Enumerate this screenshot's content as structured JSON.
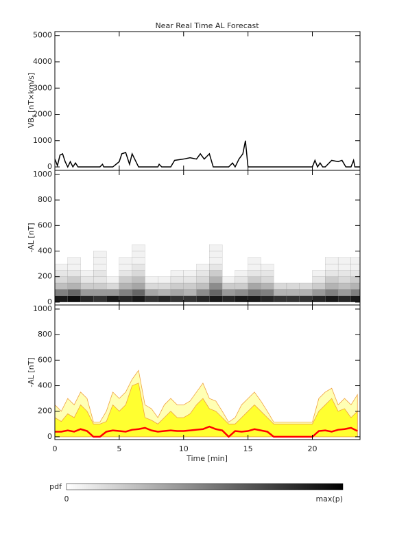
{
  "chart_data": [
    {
      "type": "line",
      "title": "Near Real Time AL Forecast",
      "ylabel_main": "VB",
      "ylabel_sub": "s",
      "ylabel_unit": "[nT×km/s]",
      "xlim": [
        0,
        23.7
      ],
      "ylim": [
        -130,
        5150
      ],
      "xticks": [
        0,
        5,
        10,
        15,
        20
      ],
      "yticks": [
        0,
        1000,
        2000,
        3000,
        4000,
        5000
      ],
      "show_xtick_labels": false,
      "series": [
        {
          "color": "#000000",
          "x": [
            0,
            0.2,
            0.4,
            0.6,
            0.8,
            1.0,
            1.2,
            1.4,
            1.6,
            1.8,
            2.0,
            2.5,
            3,
            3.5,
            3.7,
            3.8,
            4.5,
            5,
            5.2,
            5.5,
            5.8,
            6,
            6.2,
            6.5,
            8,
            8.1,
            8.3,
            9,
            9.3,
            10,
            10.5,
            11,
            11.3,
            11.6,
            11.8,
            12,
            12.3,
            12.5,
            13,
            13.5,
            13.8,
            14,
            14.3,
            14.6,
            14.8,
            15,
            15.3,
            15.6,
            16,
            17,
            20,
            20.2,
            20.4,
            20.6,
            20.8,
            21,
            21.5,
            22,
            22.3,
            22.6,
            23,
            23.2,
            23.3,
            23.7
          ],
          "values": [
            300,
            50,
            450,
            500,
            200,
            0,
            200,
            0,
            150,
            0,
            0,
            0,
            0,
            0,
            100,
            0,
            0,
            200,
            500,
            550,
            100,
            500,
            300,
            0,
            0,
            100,
            0,
            0,
            250,
            300,
            350,
            300,
            500,
            300,
            400,
            500,
            0,
            0,
            0,
            0,
            150,
            0,
            300,
            500,
            1000,
            0,
            0,
            0,
            0,
            0,
            0,
            250,
            0,
            150,
            0,
            0,
            250,
            200,
            250,
            0,
            0,
            250,
            0,
            0
          ]
        }
      ]
    },
    {
      "type": "heatmap",
      "ylabel": "-AL [nT]",
      "xlim": [
        0,
        23.7
      ],
      "ylim": [
        -22,
        1032
      ],
      "xticks": [
        0,
        5,
        10,
        15,
        20
      ],
      "yticks": [
        0,
        200,
        400,
        600,
        800,
        1000
      ],
      "show_xtick_labels": false,
      "xbins": [
        0,
        1,
        2,
        3,
        4,
        5,
        6,
        7,
        8,
        9,
        10,
        11,
        12,
        13,
        14,
        15,
        16,
        17,
        18,
        19,
        20,
        21,
        22,
        23,
        24
      ],
      "ybins": [
        0,
        50,
        100,
        150,
        200,
        250,
        300,
        350,
        400,
        450
      ],
      "z": [
        [
          0.9,
          0.95,
          0.85,
          0.8,
          0.9,
          0.85,
          0.9,
          0.8,
          0.85,
          0.8,
          0.8,
          0.85,
          0.9,
          0.85,
          0.9,
          0.9,
          0.85,
          0.8,
          0.8,
          0.8,
          0.85,
          0.9,
          0.85,
          0.9
        ],
        [
          0.5,
          0.6,
          0.4,
          0.4,
          0.4,
          0.5,
          0.6,
          0.35,
          0.3,
          0.35,
          0.3,
          0.45,
          0.6,
          0.4,
          0.45,
          0.55,
          0.5,
          0.3,
          0.3,
          0.3,
          0.4,
          0.5,
          0.4,
          0.5
        ],
        [
          0.25,
          0.3,
          0.2,
          0.2,
          0.15,
          0.3,
          0.35,
          0.15,
          0.15,
          0.2,
          0.2,
          0.25,
          0.45,
          0.2,
          0.2,
          0.35,
          0.3,
          0.15,
          0.15,
          0.15,
          0.2,
          0.3,
          0.25,
          0.3
        ],
        [
          0.15,
          0.2,
          0.1,
          0.1,
          0.05,
          0.2,
          0.25,
          0.05,
          0.05,
          0.1,
          0.1,
          0.15,
          0.3,
          0.05,
          0.1,
          0.2,
          0.15,
          0,
          0,
          0,
          0.1,
          0.2,
          0.15,
          0.2
        ],
        [
          0.1,
          0.1,
          0.05,
          0.1,
          0,
          0.1,
          0.15,
          0,
          0,
          0.05,
          0.05,
          0.1,
          0.2,
          0,
          0.05,
          0.1,
          0.1,
          0,
          0,
          0,
          0.05,
          0.1,
          0.1,
          0.1
        ],
        [
          0.05,
          0.05,
          0,
          0.05,
          0,
          0.05,
          0.1,
          0,
          0,
          0,
          0,
          0.05,
          0.1,
          0,
          0,
          0.05,
          0.05,
          0,
          0,
          0,
          0,
          0.05,
          0.05,
          0.05
        ],
        [
          0,
          0.05,
          0,
          0.05,
          0,
          0.05,
          0.05,
          0,
          0,
          0,
          0,
          0,
          0.05,
          0,
          0,
          0.05,
          0,
          0,
          0,
          0,
          0,
          0.05,
          0.05,
          0.05
        ],
        [
          0,
          0,
          0,
          0.05,
          0,
          0,
          0.05,
          0,
          0,
          0,
          0,
          0,
          0.05,
          0,
          0,
          0,
          0,
          0,
          0,
          0,
          0,
          0,
          0,
          0
        ],
        [
          0,
          0,
          0,
          0,
          0,
          0,
          0.05,
          0,
          0,
          0,
          0,
          0,
          0.05,
          0,
          0,
          0,
          0,
          0,
          0,
          0,
          0,
          0,
          0,
          0
        ]
      ]
    },
    {
      "type": "area",
      "ylabel": "-AL [nT]",
      "xlabel": "Time [min]",
      "xlim": [
        0,
        23.7
      ],
      "ylim": [
        -22,
        1032
      ],
      "xticks": [
        0,
        5,
        10,
        15,
        20
      ],
      "yticks": [
        0,
        200,
        400,
        600,
        800,
        1000
      ],
      "show_xtick_labels": true,
      "x": [
        0,
        0.5,
        1,
        1.5,
        2,
        2.5,
        3,
        3.5,
        4,
        4.5,
        5,
        5.5,
        6,
        6.5,
        7,
        7.5,
        8,
        8.5,
        9,
        9.5,
        10,
        10.5,
        11,
        11.5,
        12,
        12.5,
        13,
        13.5,
        14,
        14.5,
        15,
        15.5,
        16,
        16.5,
        17,
        17.5,
        18,
        18.5,
        19,
        19.5,
        20,
        20.5,
        21,
        21.5,
        22,
        22.5,
        23,
        23.5
      ],
      "series": [
        {
          "style": "fill",
          "color": "#ffffb4",
          "edge": "#f0a040",
          "values": [
            250,
            200,
            300,
            250,
            350,
            300,
            115,
            115,
            200,
            350,
            300,
            350,
            450,
            520,
            250,
            220,
            150,
            250,
            300,
            250,
            250,
            280,
            350,
            420,
            300,
            280,
            200,
            115,
            150,
            250,
            300,
            350,
            280,
            200,
            115,
            115,
            115,
            115,
            115,
            115,
            115,
            300,
            350,
            380,
            250,
            300,
            250,
            330
          ]
        },
        {
          "style": "fill",
          "color": "#ffff30",
          "edge": "#f0a040",
          "values": [
            150,
            120,
            180,
            150,
            250,
            200,
            100,
            100,
            120,
            250,
            200,
            250,
            400,
            420,
            150,
            130,
            100,
            150,
            200,
            150,
            150,
            180,
            250,
            300,
            220,
            200,
            150,
            100,
            100,
            150,
            200,
            250,
            200,
            150,
            100,
            100,
            100,
            100,
            100,
            100,
            100,
            200,
            250,
            300,
            200,
            220,
            150,
            200
          ]
        },
        {
          "style": "line",
          "color": "#ff0000",
          "values": [
            40,
            40,
            50,
            40,
            60,
            45,
            0,
            0,
            40,
            50,
            45,
            40,
            55,
            60,
            70,
            50,
            40,
            45,
            50,
            45,
            45,
            50,
            55,
            60,
            80,
            60,
            50,
            0,
            45,
            40,
            45,
            60,
            50,
            40,
            0,
            0,
            0,
            0,
            0,
            0,
            0,
            45,
            50,
            40,
            55,
            60,
            70,
            45
          ]
        }
      ],
      "colorbar": {
        "label": "pdf",
        "min_label": "0",
        "max_label": "max(p)"
      }
    }
  ]
}
